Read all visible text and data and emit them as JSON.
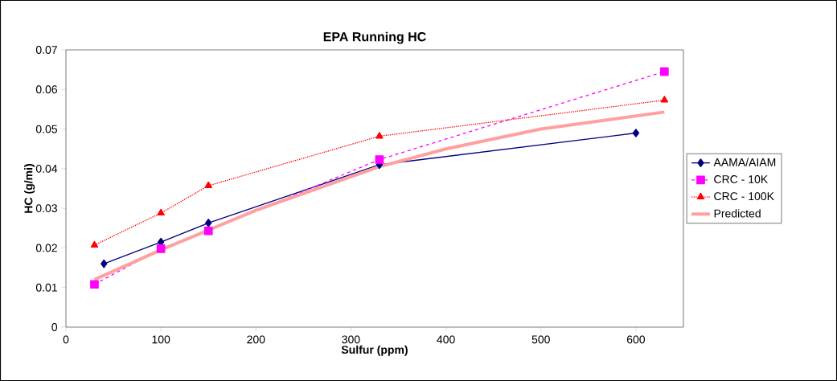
{
  "chart_data": {
    "type": "line",
    "title": "EPA Running HC",
    "xlabel": "Sulfur (ppm)",
    "ylabel": "HC (g/mi)",
    "xlim": [
      0,
      650
    ],
    "xticks": [
      0,
      100,
      200,
      300,
      400,
      500,
      600
    ],
    "ylim": [
      0,
      0.07
    ],
    "yticks": [
      0,
      0.01,
      0.02,
      0.03,
      0.04,
      0.05,
      0.06,
      0.07
    ],
    "grid": false,
    "legend": "right",
    "series": [
      {
        "name": "AAMA/AIAM",
        "color": "#000080",
        "marker": "diamond",
        "line_style": "solid",
        "x": [
          40,
          100,
          150,
          330,
          600
        ],
        "values": [
          0.016,
          0.0215,
          0.0263,
          0.041,
          0.049
        ]
      },
      {
        "name": "CRC - 10K",
        "color": "#ff00ff",
        "marker": "square",
        "line_style": "dashed",
        "x": [
          30,
          100,
          150,
          330,
          630
        ],
        "values": [
          0.0108,
          0.0198,
          0.0243,
          0.0423,
          0.0645
        ]
      },
      {
        "name": "CRC - 100K",
        "color": "#ff0000",
        "marker": "triangle",
        "line_style": "dotted",
        "x": [
          30,
          100,
          150,
          330,
          630
        ],
        "values": [
          0.0207,
          0.0288,
          0.0357,
          0.0482,
          0.0573
        ]
      },
      {
        "name": "Predicted",
        "color": "#ffa0a0",
        "marker": "none",
        "line_style": "solid",
        "x": [
          30,
          100,
          150,
          200,
          330,
          400,
          500,
          630
        ],
        "values": [
          0.012,
          0.0195,
          0.0245,
          0.0295,
          0.0405,
          0.045,
          0.05,
          0.0543
        ]
      }
    ]
  }
}
